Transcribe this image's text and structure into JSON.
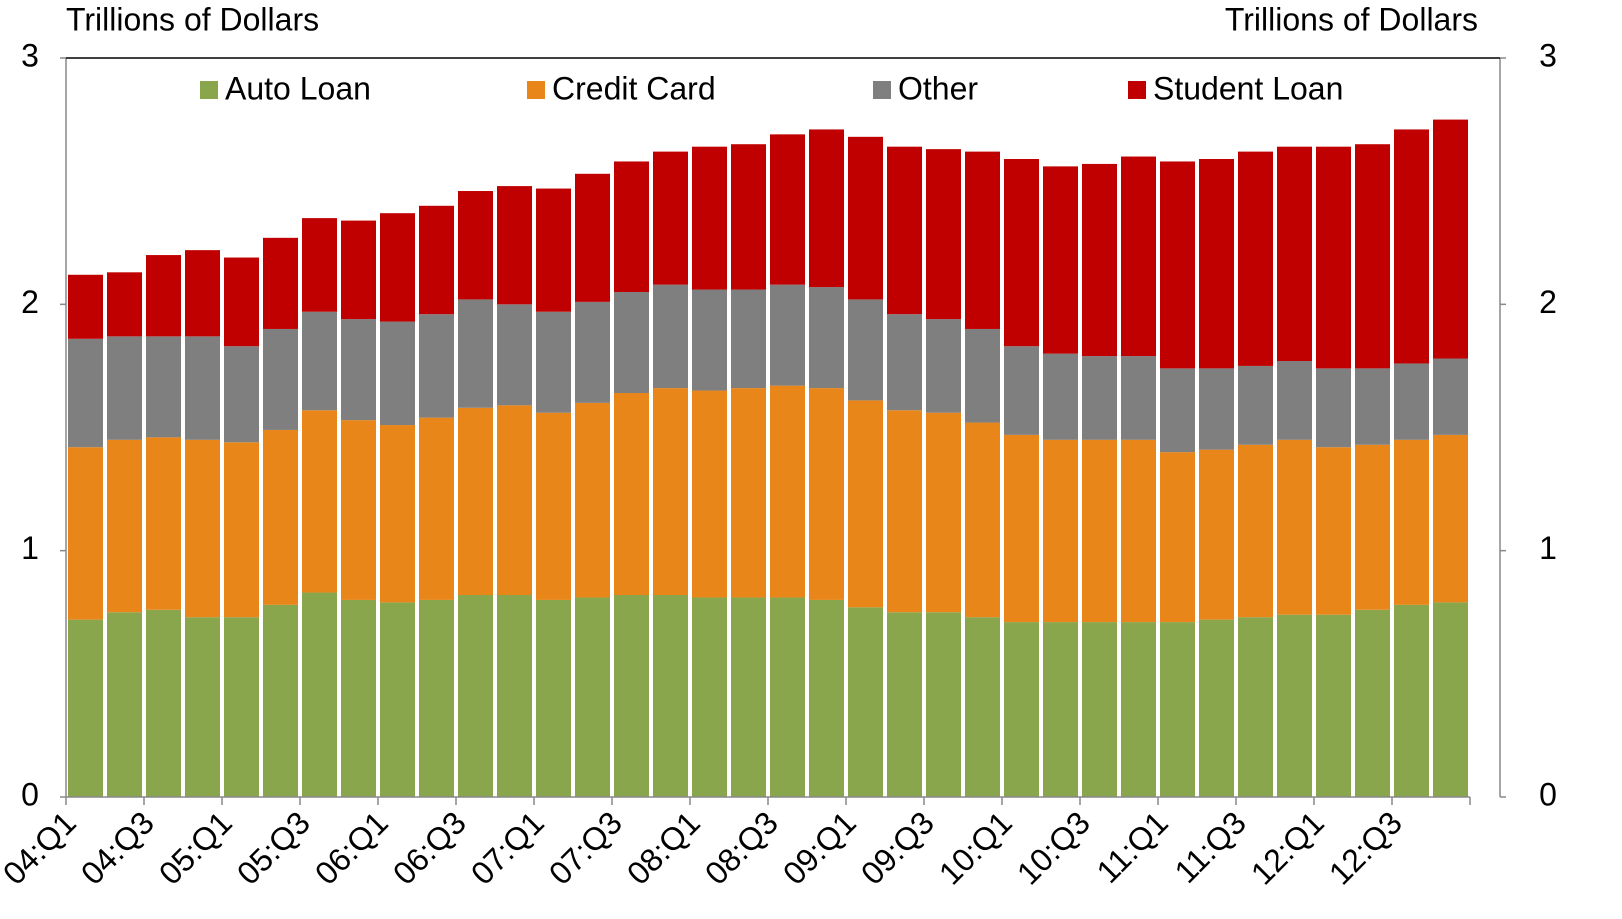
{
  "chart_data": {
    "type": "stacked_bar",
    "y_label": "Trillions of Dollars",
    "y2_label": "Trillions of Dollars",
    "categories": [
      "04:Q1",
      null,
      "04:Q3",
      null,
      "05:Q1",
      null,
      "05:Q3",
      null,
      "06:Q1",
      null,
      "06:Q3",
      null,
      "07:Q1",
      null,
      "07:Q3",
      null,
      "08:Q1",
      null,
      "08:Q3",
      null,
      "09:Q1",
      null,
      "09:Q3",
      null,
      "10:Q1",
      null,
      "10:Q3",
      null,
      "11:Q1",
      null,
      "11:Q3",
      null,
      "12:Q1",
      null,
      "12:Q3",
      null
    ],
    "series": [
      {
        "name": "Auto Loan",
        "color": "#8aa64d",
        "values": [
          0.72,
          0.75,
          0.76,
          0.73,
          0.73,
          0.78,
          0.83,
          0.8,
          0.79,
          0.8,
          0.82,
          0.82,
          0.8,
          0.81,
          0.82,
          0.82,
          0.81,
          0.81,
          0.81,
          0.8,
          0.77,
          0.75,
          0.75,
          0.73,
          0.71,
          0.71,
          0.71,
          0.71,
          0.71,
          0.72,
          0.73,
          0.74,
          0.74,
          0.76,
          0.78,
          0.79
        ]
      },
      {
        "name": "Credit Card",
        "color": "#e8861a",
        "values": [
          0.7,
          0.7,
          0.7,
          0.72,
          0.71,
          0.71,
          0.74,
          0.73,
          0.72,
          0.74,
          0.76,
          0.77,
          0.76,
          0.79,
          0.82,
          0.84,
          0.84,
          0.85,
          0.86,
          0.86,
          0.84,
          0.82,
          0.81,
          0.79,
          0.76,
          0.74,
          0.74,
          0.74,
          0.69,
          0.69,
          0.7,
          0.71,
          0.68,
          0.67,
          0.67,
          0.68
        ]
      },
      {
        "name": "Other",
        "color": "#7f7f7f",
        "values": [
          0.44,
          0.42,
          0.41,
          0.42,
          0.39,
          0.41,
          0.4,
          0.41,
          0.42,
          0.42,
          0.44,
          0.41,
          0.41,
          0.41,
          0.41,
          0.42,
          0.41,
          0.4,
          0.41,
          0.41,
          0.41,
          0.39,
          0.38,
          0.38,
          0.36,
          0.35,
          0.34,
          0.34,
          0.34,
          0.33,
          0.32,
          0.32,
          0.32,
          0.31,
          0.31,
          0.31
        ]
      },
      {
        "name": "Student Loan",
        "color": "#c00000",
        "values": [
          0.26,
          0.26,
          0.33,
          0.35,
          0.36,
          0.37,
          0.38,
          0.4,
          0.44,
          0.44,
          0.44,
          0.48,
          0.5,
          0.52,
          0.53,
          0.54,
          0.58,
          0.59,
          0.61,
          0.64,
          0.66,
          0.68,
          0.69,
          0.72,
          0.76,
          0.76,
          0.78,
          0.81,
          0.84,
          0.85,
          0.87,
          0.87,
          0.9,
          0.91,
          0.95,
          0.97
        ]
      }
    ],
    "ylim": [
      0,
      3
    ],
    "yticks": [
      0,
      1,
      2,
      3
    ],
    "y2lim": [
      0,
      3
    ],
    "y2ticks": [
      0,
      1,
      2,
      3
    ],
    "legend": "top"
  }
}
